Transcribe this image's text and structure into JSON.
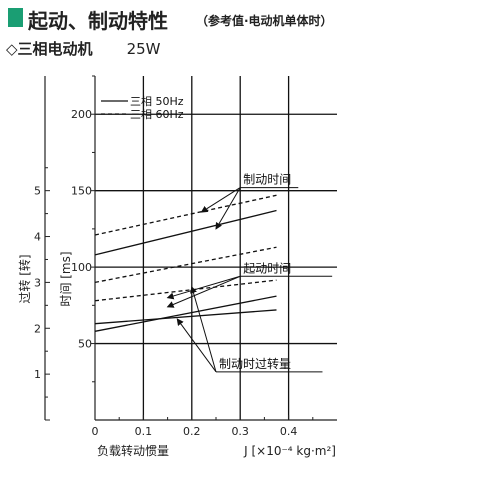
{
  "header": {
    "title": "起动、制动特性",
    "subtitle": "（参考值·电动机单体时）",
    "accent_color": "#1a9e73"
  },
  "motor": {
    "marker": "◇",
    "label": "三相电动机",
    "power": "25W"
  },
  "chart_data": {
    "type": "line",
    "x_axis": {
      "label": "J [×10⁻⁴ kg·m²]",
      "ticks": [
        "0",
        "0.1",
        "0.2",
        "0.3",
        "0.4"
      ],
      "tick_values": [
        0,
        0.1,
        0.2,
        0.3,
        0.4
      ],
      "range": [
        0,
        0.5
      ],
      "caption": "负载转动惯量"
    },
    "y_axis_left": {
      "label": "过转 [转]",
      "ticks": [
        "0",
        "1",
        "2",
        "3",
        "4",
        "5"
      ],
      "tick_values": [
        0,
        1,
        2,
        3,
        4,
        5
      ],
      "range": [
        0,
        7.5
      ]
    },
    "y_axis_right": {
      "label": "时间 [ms]",
      "ticks": [
        "50",
        "100",
        "150",
        "200"
      ],
      "tick_values": [
        50,
        100,
        150,
        200
      ],
      "range": [
        0,
        225
      ]
    },
    "grid": true,
    "legend": {
      "placement": "top-left",
      "entries": [
        {
          "label": "三相 50Hz",
          "style": "solid"
        },
        {
          "label": "三相 60Hz",
          "style": "dashed"
        }
      ]
    },
    "series": [
      {
        "group": "制动时间",
        "freq": "50Hz",
        "style": "solid",
        "x": [
          0,
          0.375
        ],
        "y": [
          108,
          137
        ]
      },
      {
        "group": "制动时间",
        "freq": "60Hz",
        "style": "dashed",
        "x": [
          0,
          0.375
        ],
        "y": [
          121,
          147
        ]
      },
      {
        "group": "起动时间",
        "freq": "50Hz",
        "style": "solid",
        "x": [
          0,
          0.375
        ],
        "y": [
          58,
          81
        ]
      },
      {
        "group": "起动时间",
        "freq": "60Hz",
        "style": "dashed",
        "x": [
          0,
          0.375
        ],
        "y": [
          90,
          113
        ]
      },
      {
        "group": "制动时过转量",
        "freq": "50Hz",
        "style": "solid",
        "x": [
          0,
          0.375
        ],
        "y": [
          2.1,
          2.4
        ]
      },
      {
        "group": "制动时过转量",
        "freq": "60Hz",
        "style": "dashed",
        "x": [
          0,
          0.375
        ],
        "y": [
          2.6,
          3.05
        ]
      }
    ],
    "annotations": [
      {
        "text": "制动时间",
        "tail": [
          0.3,
          152
        ],
        "targets": [
          [
            0.22,
            136
          ],
          [
            0.25,
            125
          ]
        ]
      },
      {
        "text": "起动时间",
        "tail": [
          0.3,
          94
        ],
        "targets": [
          [
            0.15,
            74
          ],
          [
            0.15,
            80
          ]
        ]
      },
      {
        "text": "制动时过转量",
        "tail": [
          0.25,
          1.05
        ],
        "targets": [
          [
            0.2,
            2.9
          ],
          [
            0.17,
            2.2
          ]
        ]
      }
    ]
  }
}
